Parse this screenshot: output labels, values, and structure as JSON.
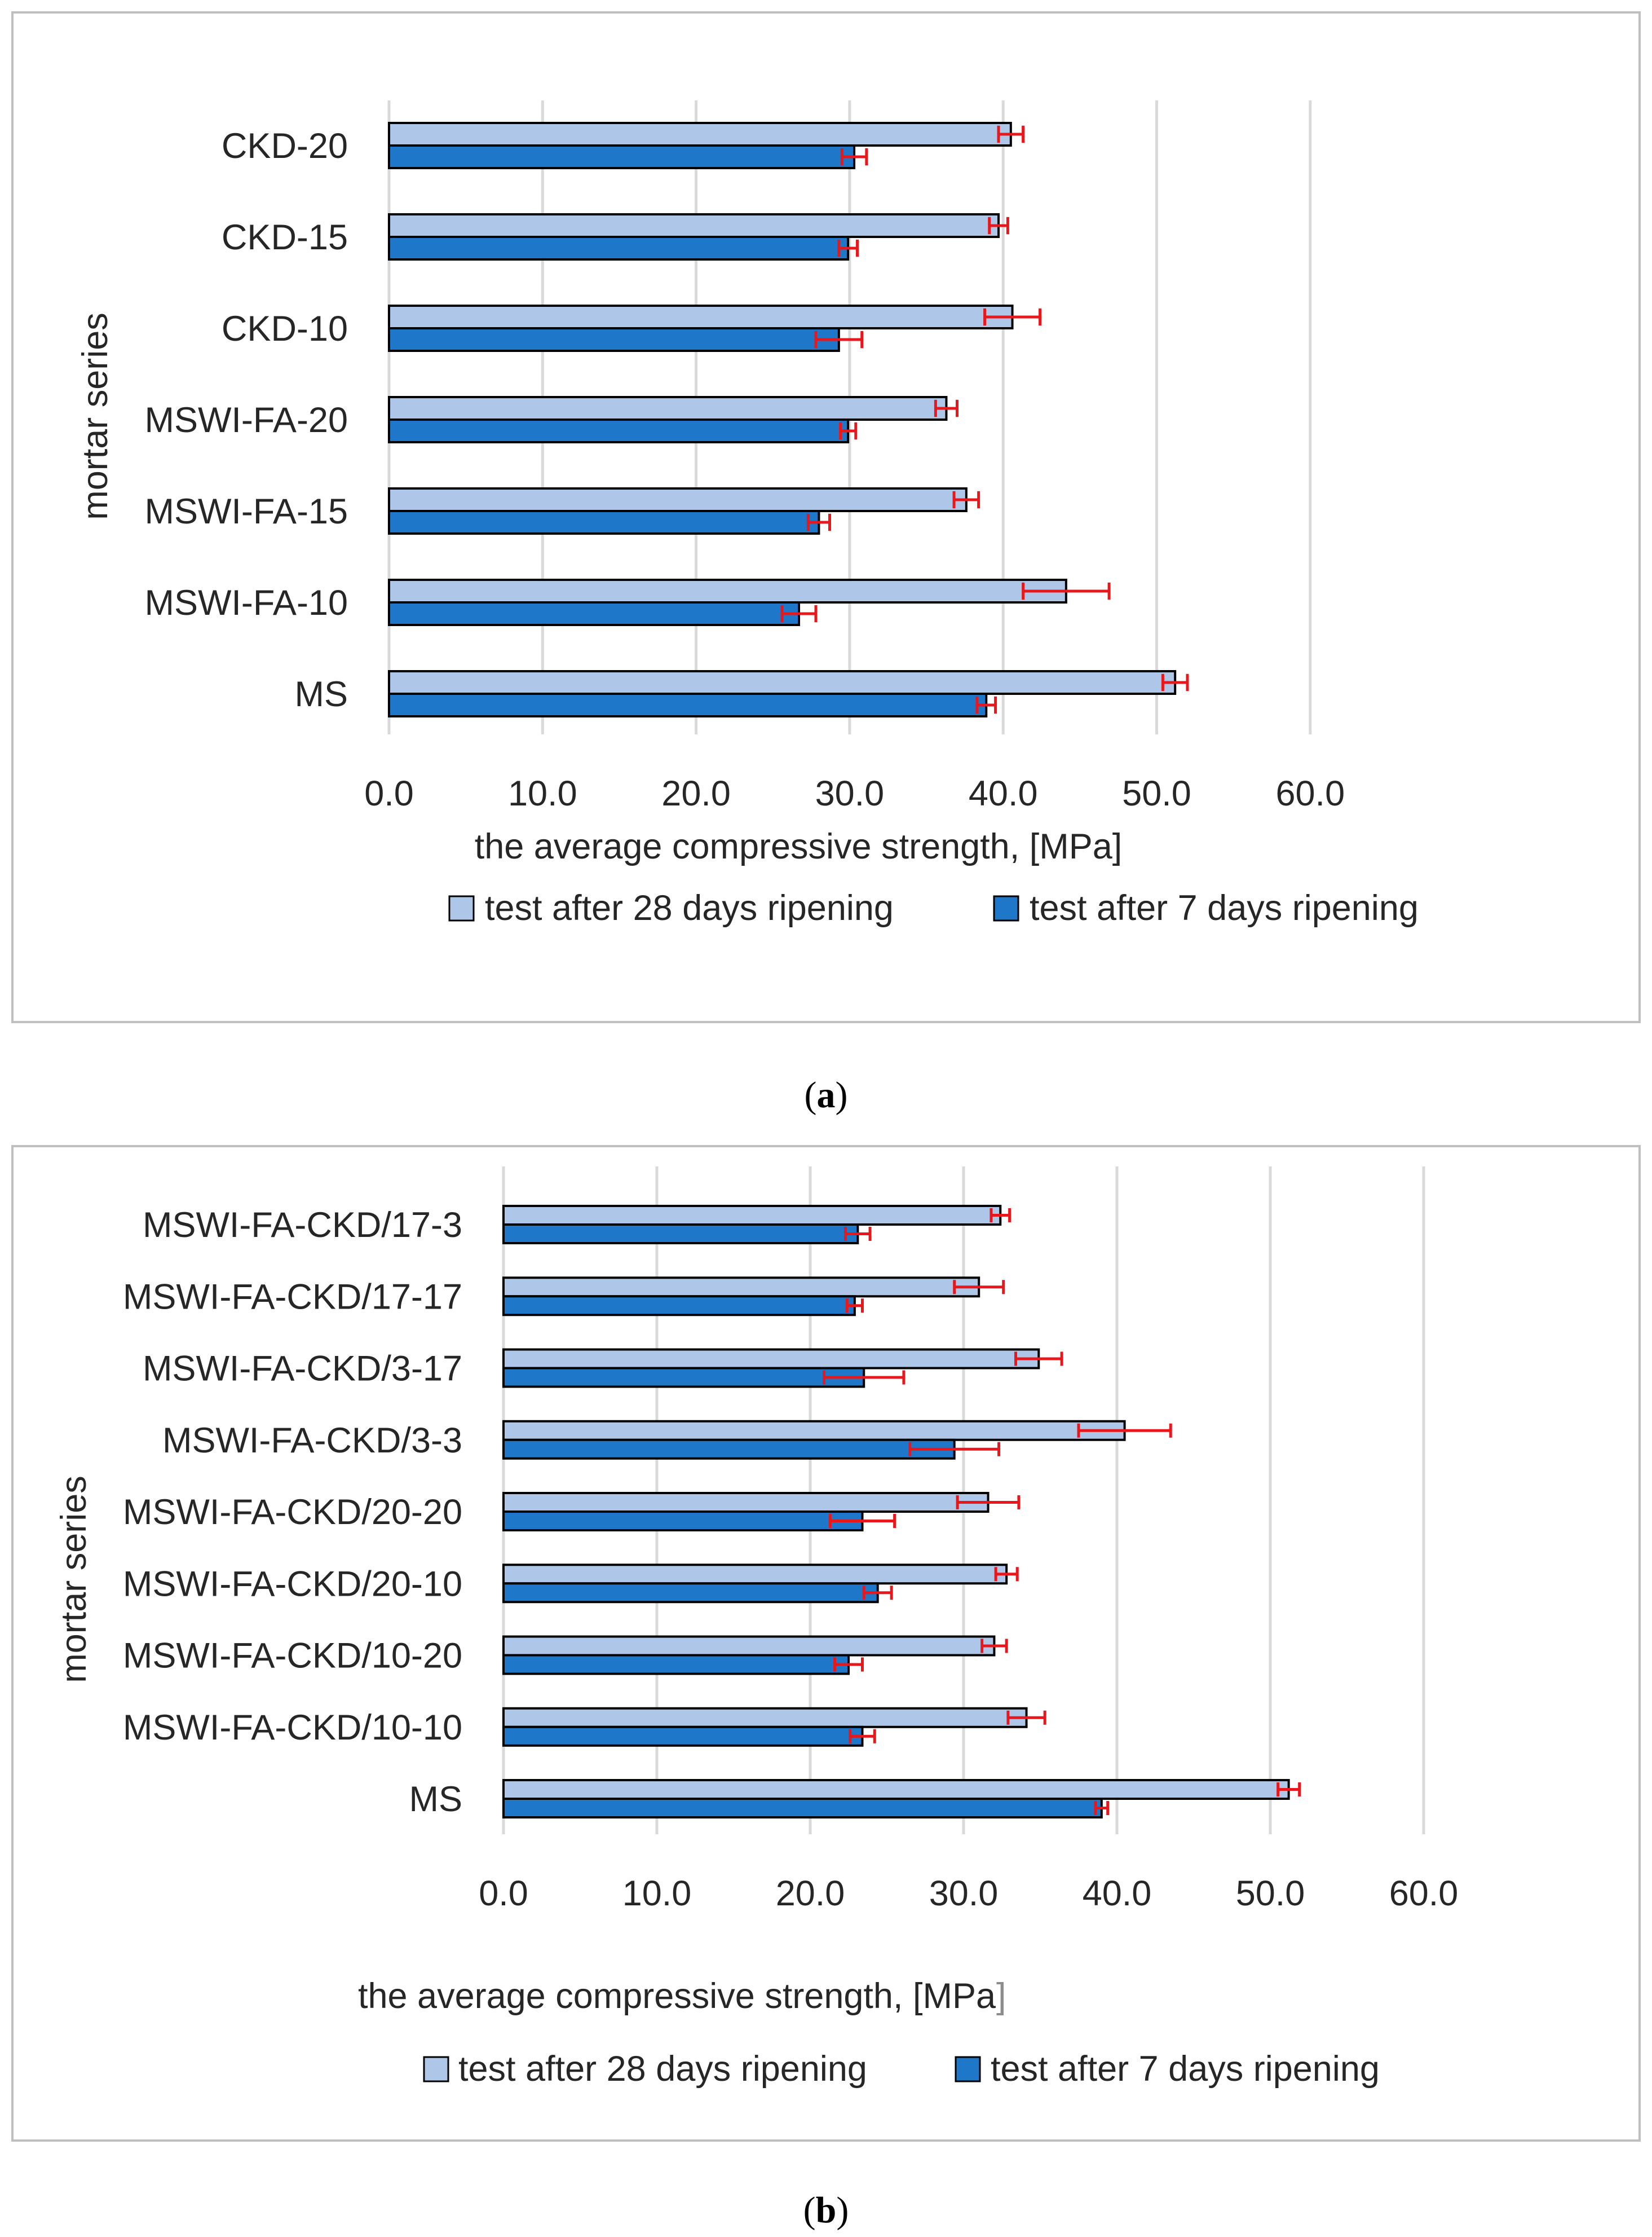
{
  "figure": {
    "captions": [
      "(a)",
      "(b)"
    ],
    "caption_letters": [
      "a",
      "b"
    ]
  },
  "colors": {
    "series28": "#AEC7E8",
    "series7": "#1F77C9",
    "error_bar": "#E8171B",
    "grid": "#D9D9D9",
    "frame": "#BFBFBF"
  },
  "chart_data": [
    {
      "type": "bar",
      "orientation": "horizontal",
      "panel": "a",
      "categories": [
        "CKD-20",
        "CKD-15",
        "CKD-10",
        "MSWI-FA-20",
        "MSWI-FA-15",
        "MSWI-FA-10",
        "MS"
      ],
      "series": [
        {
          "name": "test after 28 days ripening",
          "values": [
            40.5,
            39.7,
            40.6,
            36.3,
            37.6,
            44.1,
            51.2
          ],
          "errors": [
            0.8,
            0.6,
            1.8,
            0.7,
            0.8,
            2.8,
            0.8
          ]
        },
        {
          "name": "test after 7 days ripening",
          "values": [
            30.3,
            29.9,
            29.3,
            29.9,
            28.0,
            26.7,
            38.9
          ],
          "errors": [
            0.8,
            0.6,
            1.5,
            0.5,
            0.7,
            1.1,
            0.6
          ]
        }
      ],
      "xlim": [
        0,
        60
      ],
      "xticks": [
        "0.0",
        "10.0",
        "20.0",
        "30.0",
        "40.0",
        "50.0",
        "60.0"
      ],
      "xlabel": "the average compressive strength, [MPa]",
      "ylabel": "mortar series",
      "legend": "bottom",
      "grid": true
    },
    {
      "type": "bar",
      "orientation": "horizontal",
      "panel": "b",
      "categories": [
        "MSWI-FA-CKD/17-3",
        "MSWI-FA-CKD/17-17",
        "MSWI-FA-CKD/3-17",
        "MSWI-FA-CKD/3-3",
        "MSWI-FA-CKD/20-20",
        "MSWI-FA-CKD/20-10",
        "MSWI-FA-CKD/10-20",
        "MSWI-FA-CKD/10-10",
        "MS"
      ],
      "series": [
        {
          "name": "test after 28 days ripening",
          "values": [
            32.4,
            31.0,
            34.9,
            40.5,
            31.6,
            32.8,
            32.0,
            34.1,
            51.2
          ],
          "errors": [
            0.6,
            1.6,
            1.5,
            3.0,
            2.0,
            0.7,
            0.8,
            1.2,
            0.7
          ]
        },
        {
          "name": "test after 7 days ripening",
          "values": [
            23.1,
            22.9,
            23.5,
            29.4,
            23.4,
            24.4,
            22.5,
            23.4,
            39.0
          ],
          "errors": [
            0.8,
            0.5,
            2.6,
            2.9,
            2.1,
            0.9,
            0.9,
            0.8,
            0.4
          ]
        }
      ],
      "xlim": [
        0,
        60
      ],
      "xticks": [
        "0.0",
        "10.0",
        "20.0",
        "30.0",
        "40.0",
        "50.0",
        "60.0"
      ],
      "xlabel": "the average compressive strength, [MPa",
      "xlabel_suffix": "]",
      "ylabel": "mortar series",
      "legend": "bottom",
      "grid": true
    }
  ]
}
